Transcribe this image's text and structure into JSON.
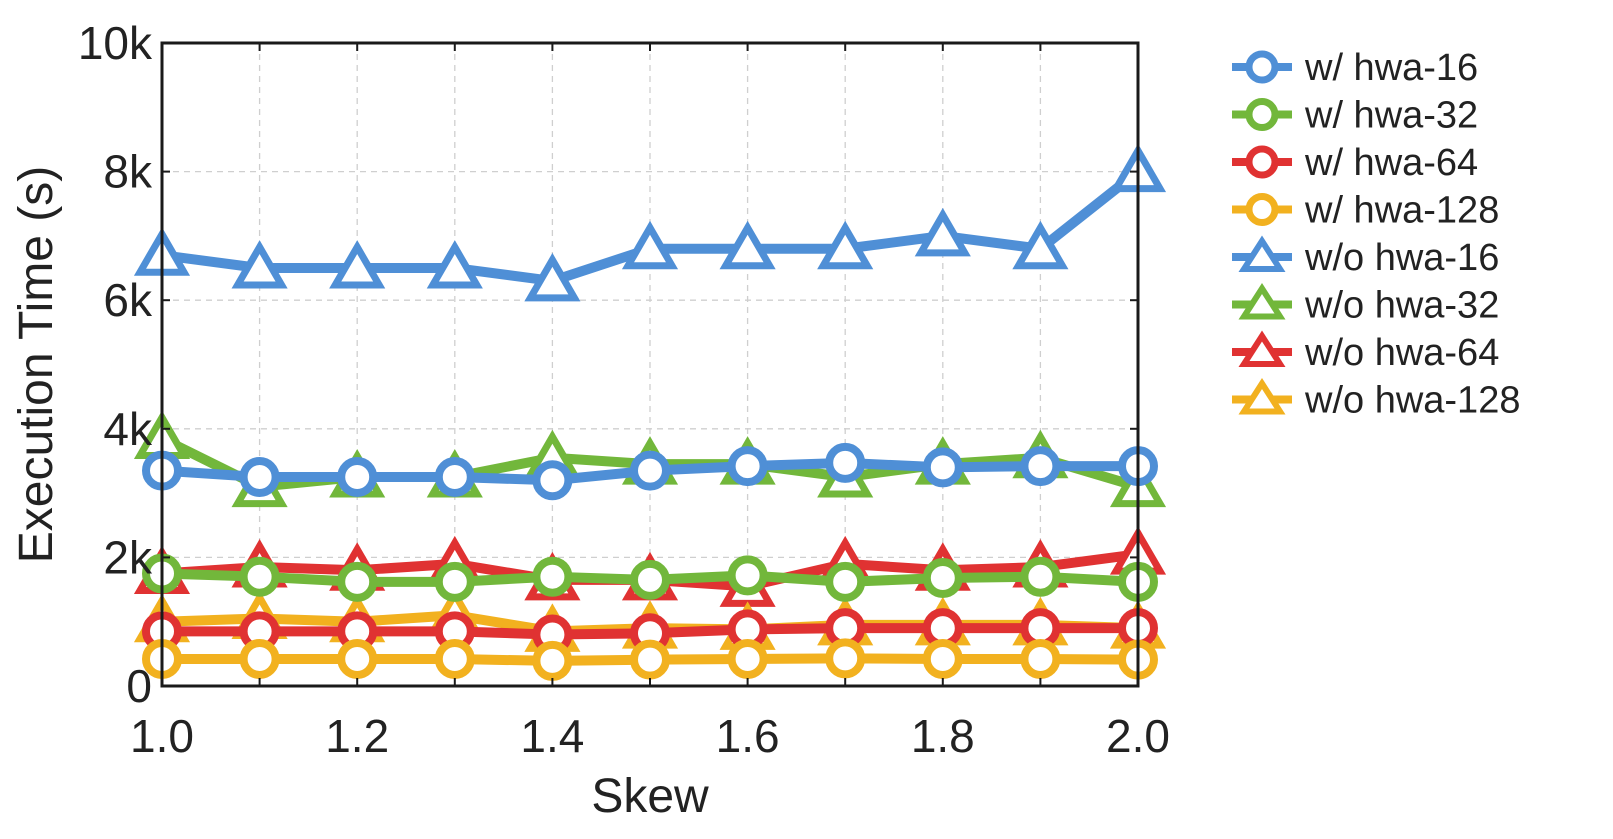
{
  "chart_data": {
    "type": "line",
    "title": "",
    "xlabel": "Skew",
    "ylabel": "Execution Time (s)",
    "xlim": [
      1.0,
      2.0
    ],
    "ylim": [
      0,
      10000
    ],
    "xticks": [
      1.0,
      1.2,
      1.4,
      1.6,
      1.8,
      2.0
    ],
    "xtick_labels": [
      "1.0",
      "1.2",
      "1.4",
      "1.6",
      "1.8",
      "2.0"
    ],
    "yticks": [
      0,
      2000,
      4000,
      6000,
      8000,
      10000
    ],
    "ytick_labels": [
      "0",
      "2k",
      "4k",
      "6k",
      "8k",
      "10k"
    ],
    "grid": true,
    "legend_position": "right-outside",
    "x": [
      1.0,
      1.1,
      1.2,
      1.3,
      1.4,
      1.5,
      1.6,
      1.7,
      1.8,
      1.9,
      2.0
    ],
    "series": [
      {
        "name": "w/ hwa-16",
        "color": "#4f8fd6",
        "marker": "circle",
        "values": [
          3350,
          3250,
          3250,
          3250,
          3200,
          3350,
          3420,
          3470,
          3400,
          3420,
          3420
        ]
      },
      {
        "name": "w/ hwa-32",
        "color": "#72b73b",
        "marker": "circle",
        "values": [
          1750,
          1700,
          1620,
          1620,
          1700,
          1650,
          1720,
          1620,
          1680,
          1700,
          1620
        ]
      },
      {
        "name": "w/ hwa-64",
        "color": "#e03232",
        "marker": "circle",
        "values": [
          850,
          850,
          850,
          850,
          800,
          820,
          880,
          900,
          900,
          900,
          900
        ]
      },
      {
        "name": "w/ hwa-128",
        "color": "#f2b11f",
        "marker": "circle",
        "values": [
          420,
          420,
          420,
          420,
          390,
          410,
          420,
          430,
          420,
          420,
          410
        ]
      },
      {
        "name": "w/o hwa-16",
        "color": "#4f8fd6",
        "marker": "triangle",
        "values": [
          6700,
          6500,
          6500,
          6500,
          6300,
          6800,
          6800,
          6800,
          7000,
          6800,
          8000
        ]
      },
      {
        "name": "w/o hwa-32",
        "color": "#72b73b",
        "marker": "triangle",
        "values": [
          3850,
          3100,
          3250,
          3250,
          3550,
          3450,
          3450,
          3250,
          3450,
          3550,
          3100
        ]
      },
      {
        "name": "w/o hwa-64",
        "color": "#e03232",
        "marker": "triangle",
        "values": [
          1750,
          1850,
          1800,
          1900,
          1650,
          1650,
          1550,
          1900,
          1800,
          1850,
          2050
        ]
      },
      {
        "name": "w/o hwa-128",
        "color": "#f2b11f",
        "marker": "triangle",
        "values": [
          1000,
          1050,
          1000,
          1100,
          850,
          900,
          880,
          950,
          950,
          950,
          900
        ]
      }
    ]
  }
}
